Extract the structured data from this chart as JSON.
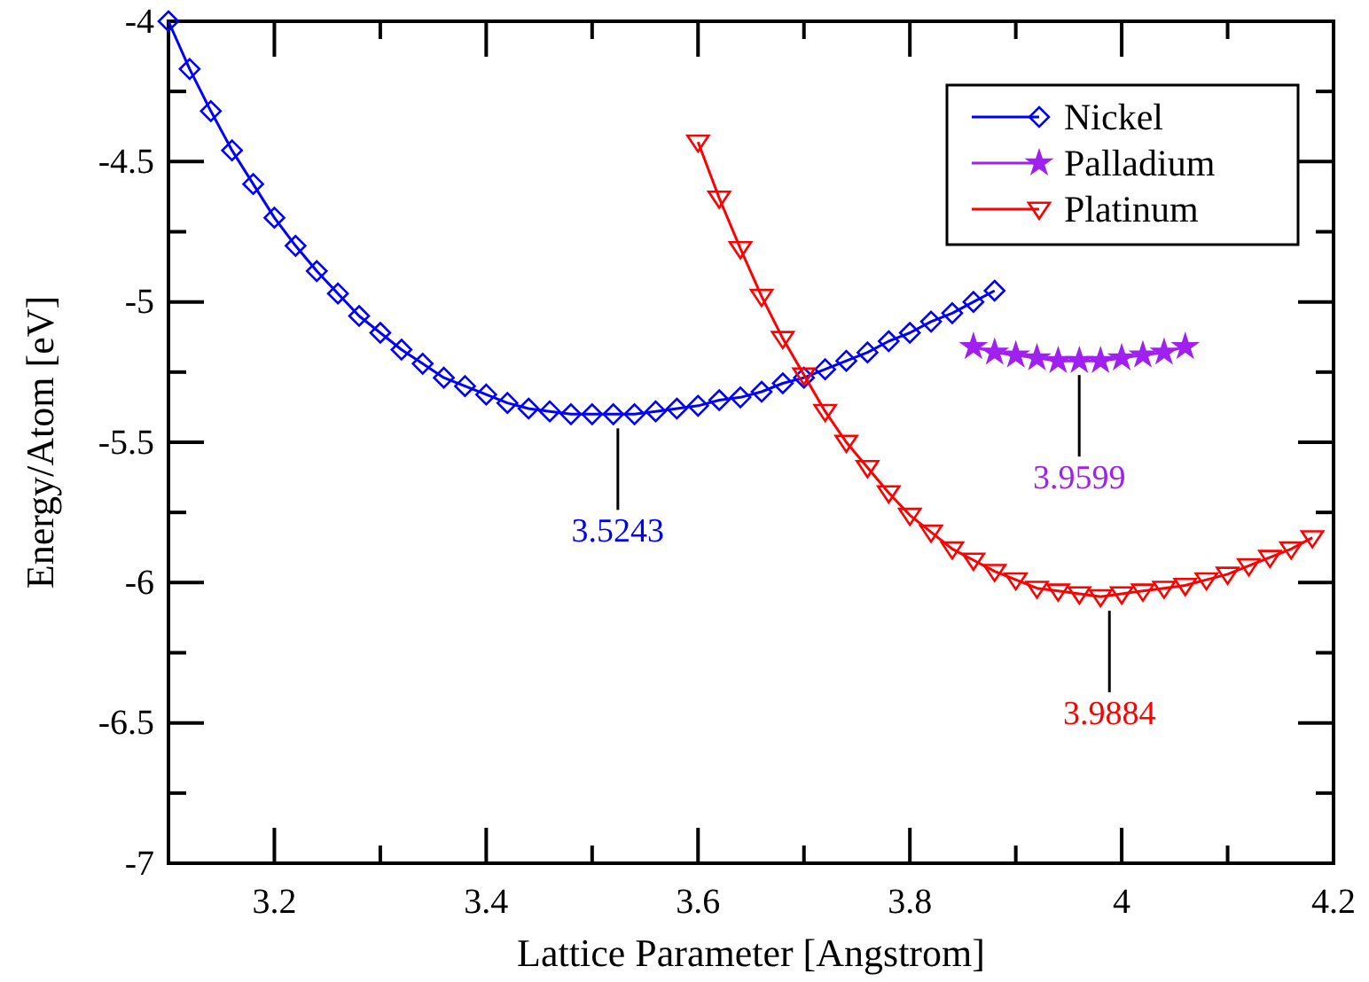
{
  "chart_data": {
    "type": "line",
    "xlabel": "Lattice Parameter [Angstrom]",
    "ylabel": "Energy/Atom [eV]",
    "xlim": [
      3.1,
      4.2
    ],
    "ylim": [
      -7,
      -4
    ],
    "xticks": [
      3.2,
      {
        "value": 3.3,
        "label": null
      },
      3.4,
      {
        "value": 3.5,
        "label": null
      },
      3.6,
      {
        "value": 3.7,
        "label": null
      },
      3.8,
      {
        "value": 3.9,
        "label": null
      },
      4,
      {
        "value": 4.1,
        "label": null
      },
      4.2
    ],
    "yticks": [
      -7,
      {
        "value": -6.75,
        "label": null
      },
      -6.5,
      {
        "value": -6.25,
        "label": null
      },
      -6,
      {
        "value": -5.75,
        "label": null
      },
      -5.5,
      {
        "value": -5.25,
        "label": null
      },
      -5,
      {
        "value": -4.75,
        "label": null
      },
      -4.5,
      {
        "value": -4.25,
        "label": null
      },
      -4
    ],
    "grid": false,
    "legend": "top right",
    "line_style": "solid",
    "series": [
      {
        "name": "Nickel",
        "color": "#0000ff",
        "marker": "diamond",
        "x": [
          3.1,
          3.12,
          3.14,
          3.16,
          3.18,
          3.2,
          3.22,
          3.24,
          3.26,
          3.28,
          3.3,
          3.32,
          3.34,
          3.36,
          3.38,
          3.4,
          3.42,
          3.44,
          3.46,
          3.48,
          3.5,
          3.52,
          3.54,
          3.56,
          3.58,
          3.6,
          3.62,
          3.64,
          3.66,
          3.68,
          3.7,
          3.72,
          3.74,
          3.76,
          3.78,
          3.8,
          3.82,
          3.84,
          3.86,
          3.88
        ],
        "values": [
          -4.0,
          -4.17,
          -4.32,
          -4.46,
          -4.58,
          -4.7,
          -4.8,
          -4.89,
          -4.97,
          -5.05,
          -5.11,
          -5.17,
          -5.22,
          -5.27,
          -5.3,
          -5.33,
          -5.36,
          -5.38,
          -5.39,
          -5.4,
          -5.4,
          -5.4,
          -5.4,
          -5.39,
          -5.38,
          -5.37,
          -5.35,
          -5.34,
          -5.32,
          -5.29,
          -5.27,
          -5.24,
          -5.21,
          -5.18,
          -5.14,
          -5.11,
          -5.07,
          -5.04,
          -5.0,
          -4.96
        ]
      },
      {
        "name": "Palladium",
        "color": "#a020f0",
        "marker": "star",
        "x": [
          3.86,
          3.88,
          3.9,
          3.92,
          3.94,
          3.96,
          3.98,
          4.0,
          4.02,
          4.04,
          4.06
        ],
        "values": [
          -5.16,
          -5.18,
          -5.19,
          -5.2,
          -5.21,
          -5.21,
          -5.21,
          -5.2,
          -5.19,
          -5.18,
          -5.16
        ]
      },
      {
        "name": "Platinum",
        "color": "#ff0000",
        "marker": "triangle",
        "x": [
          3.6,
          3.62,
          3.64,
          3.66,
          3.68,
          3.7,
          3.72,
          3.74,
          3.76,
          3.78,
          3.8,
          3.82,
          3.84,
          3.86,
          3.88,
          3.9,
          3.92,
          3.94,
          3.96,
          3.98,
          4.0,
          4.02,
          4.04,
          4.06,
          4.08,
          4.1,
          4.12,
          4.14,
          4.16,
          4.18
        ],
        "values": [
          -4.43,
          -4.63,
          -4.81,
          -4.98,
          -5.13,
          -5.26,
          -5.39,
          -5.5,
          -5.59,
          -5.68,
          -5.76,
          -5.82,
          -5.88,
          -5.92,
          -5.96,
          -5.99,
          -6.02,
          -6.03,
          -6.04,
          -6.05,
          -6.04,
          -6.03,
          -6.02,
          -6.01,
          -5.99,
          -5.97,
          -5.94,
          -5.91,
          -5.88,
          -5.84
        ]
      }
    ],
    "annotations": [
      {
        "text": "3.5243",
        "x": 3.5243,
        "y": -5.4
      },
      {
        "text": "3.9599",
        "x": 3.9599,
        "y": -5.21
      },
      {
        "text": "3.9884",
        "x": 3.9884,
        "y": -6.05
      }
    ]
  }
}
